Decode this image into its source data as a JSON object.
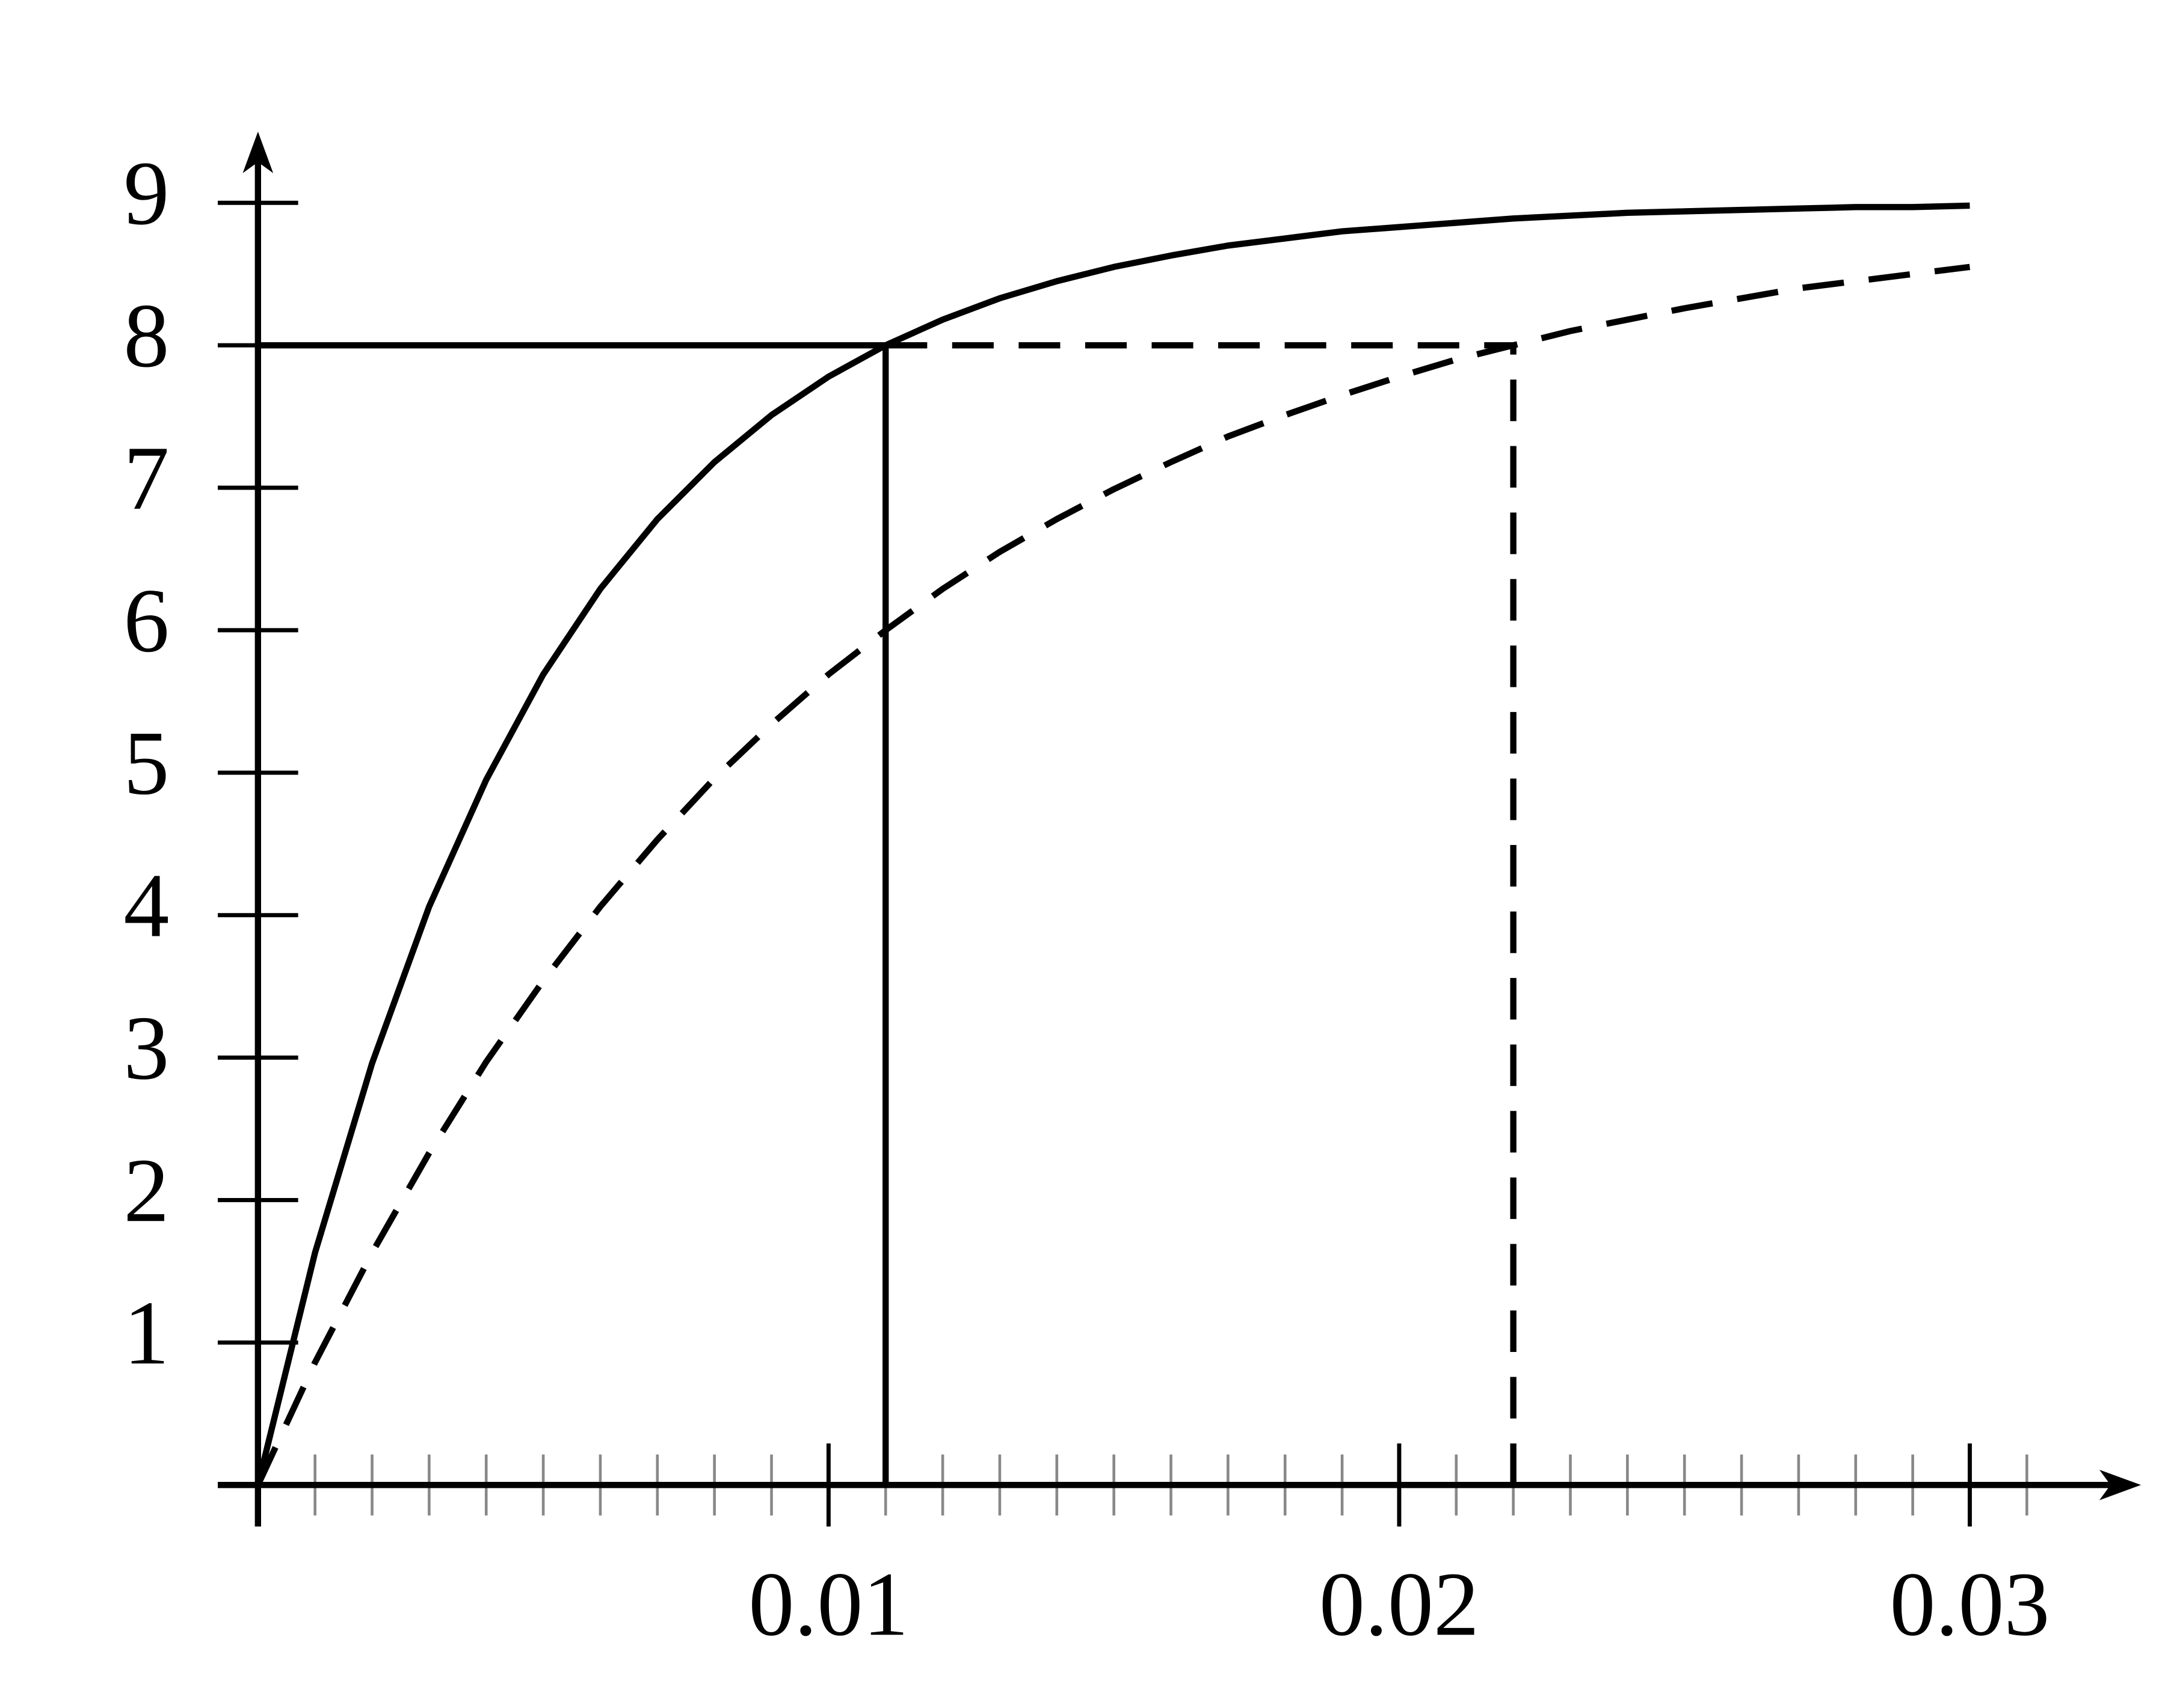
{
  "chart_data": {
    "type": "line",
    "x": [
      0,
      0.001,
      0.002,
      0.003,
      0.004,
      0.005,
      0.006,
      0.007,
      0.008,
      0.009,
      0.01,
      0.011,
      0.012,
      0.013,
      0.014,
      0.015,
      0.016,
      0.017,
      0.018,
      0.019,
      0.02,
      0.021,
      0.022,
      0.023,
      0.024,
      0.025,
      0.026,
      0.027,
      0.028,
      0.029,
      0.03
    ],
    "series": [
      {
        "color": "#000000",
        "style": "solid",
        "values": [
          0,
          1.63,
          2.96,
          4.06,
          4.95,
          5.69,
          6.29,
          6.78,
          7.18,
          7.51,
          7.78,
          8.0,
          8.18,
          8.33,
          8.45,
          8.55,
          8.63,
          8.7,
          8.75,
          8.8,
          8.83,
          8.86,
          8.89,
          8.91,
          8.93,
          8.94,
          8.95,
          8.96,
          8.97,
          8.97,
          8.98
        ]
      },
      {
        "color": "#000000",
        "style": "dashed",
        "values": [
          0,
          0.86,
          1.63,
          2.33,
          2.97,
          3.54,
          4.06,
          4.53,
          4.96,
          5.34,
          5.69,
          6.0,
          6.29,
          6.55,
          6.78,
          6.99,
          7.18,
          7.36,
          7.51,
          7.65,
          7.78,
          7.9,
          8.0,
          8.1,
          8.18,
          8.26,
          8.33,
          8.4,
          8.45,
          8.5,
          8.55
        ]
      }
    ],
    "reference_lines": [
      {
        "x": 0.011,
        "y": 8,
        "style": "solid"
      },
      {
        "x": 0.022,
        "y": 8,
        "style": "dashed"
      }
    ],
    "xlim": [
      0,
      0.033
    ],
    "ylim": [
      0,
      9.5
    ],
    "xticks": [
      0.01,
      0.02,
      0.03
    ],
    "xminorticks": [
      0.001,
      0.002,
      0.003,
      0.004,
      0.005,
      0.006,
      0.007,
      0.008,
      0.009,
      0.011,
      0.012,
      0.013,
      0.014,
      0.015,
      0.016,
      0.017,
      0.018,
      0.019,
      0.021,
      0.022,
      0.023,
      0.024,
      0.025,
      0.026,
      0.027,
      0.028,
      0.029,
      0.031
    ],
    "yticks": [
      1,
      2,
      3,
      4,
      5,
      6,
      7,
      8,
      9
    ],
    "grid": false
  }
}
